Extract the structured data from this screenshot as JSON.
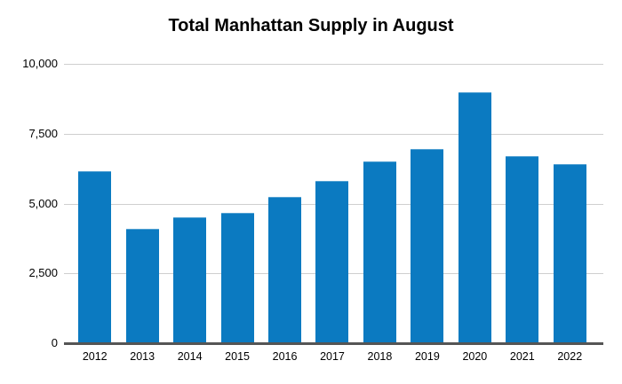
{
  "title": "Total Manhattan Supply in August",
  "colors": {
    "bar": "#0b7ac1",
    "gridline": "#cfcfcf",
    "axis_line": "#555555",
    "text": "#000000",
    "background": "#ffffff"
  },
  "chart_data": {
    "type": "bar",
    "title": "Total Manhattan Supply in August",
    "categories": [
      "2012",
      "2013",
      "2014",
      "2015",
      "2016",
      "2017",
      "2018",
      "2019",
      "2020",
      "2021",
      "2022"
    ],
    "values": [
      6150,
      4100,
      4500,
      4675,
      5250,
      5825,
      6500,
      6950,
      8975,
      6700,
      6400
    ],
    "xlabel": "",
    "ylabel": "",
    "ylim": [
      0,
      10000
    ],
    "ytick_interval": 2500,
    "ytick_values": [
      0,
      2500,
      5000,
      7500,
      10000
    ],
    "ytick_labels": [
      "0",
      "2,500",
      "5,000",
      "7,500",
      "10,000"
    ],
    "grid": true,
    "legend": false,
    "bar_color": "#0b7ac1"
  }
}
